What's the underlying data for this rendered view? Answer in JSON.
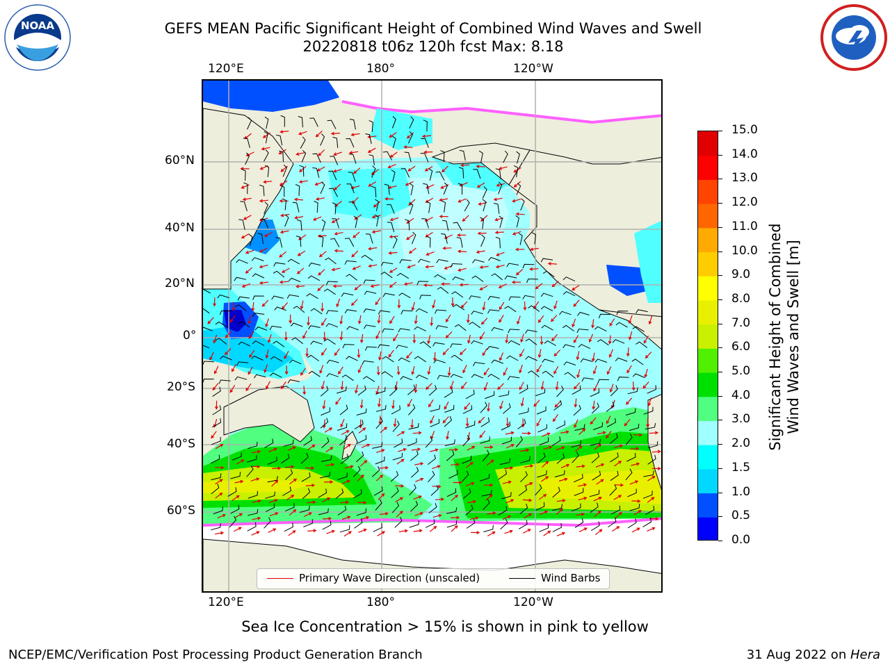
{
  "header": {
    "title_line1": "GEFS MEAN Pacific Significant Height of Combined Wind Waves and Swell",
    "title_line2": "20220818 t06z 120h fcst   Max: 8.18"
  },
  "logos": {
    "noaa": {
      "icon": "noaa-logo",
      "text": "NOAA"
    },
    "nws": {
      "icon": "nws-logo"
    }
  },
  "map": {
    "lon_labels_top": [
      "120°E",
      "180°",
      "120°W"
    ],
    "lon_labels_bottom": [
      "120°E",
      "180°",
      "120°W"
    ],
    "lat_labels": [
      "60°N",
      "40°N",
      "20°N",
      "0°",
      "20°S",
      "40°S",
      "60°S"
    ],
    "colors": {
      "land": "#eeeedd",
      "ice": "#ffffff",
      "grid": "#b0b0b0",
      "arrow": "#e00000",
      "barb": "#000000"
    }
  },
  "legend": {
    "wave_direction_label": "Primary Wave Direction (unscaled)",
    "wind_barbs_label": "Wind Barbs",
    "wave_color": "#e00000",
    "barb_color": "#000000"
  },
  "colorbar": {
    "title_line1": "Significant Height of Combined",
    "title_line2": "Wind Waves and Swell [m]",
    "ticks": [
      "15.0",
      "14.0",
      "13.0",
      "12.0",
      "11.0",
      "10.0",
      "9.0",
      "8.0",
      "7.0",
      "6.0",
      "5.0",
      "4.0",
      "3.0",
      "2.0",
      "1.5",
      "1.0",
      "0.5",
      "0.0"
    ],
    "colors_bottom_to_top": [
      "#0000ff",
      "#0050ff",
      "#0090ff",
      "#00d8ff",
      "#00ffff",
      "#50ffff",
      "#a0ffff",
      "#50ff80",
      "#00ff30",
      "#00e000",
      "#50f000",
      "#a0f000",
      "#c8f000",
      "#e8f000",
      "#ffff00",
      "#ffea00",
      "#ffcc00",
      "#ffaa00",
      "#ff8800",
      "#ff6600",
      "#ff4400",
      "#ff2200",
      "#ff0000",
      "#e00000"
    ]
  },
  "caption": "Sea Ice Concentration > 15% is shown in pink to yellow",
  "footer": {
    "left": "NCEP/EMC/Verification Post Processing Product Generation Branch",
    "date": "31 Aug 2022 on ",
    "machine": "Hera"
  }
}
